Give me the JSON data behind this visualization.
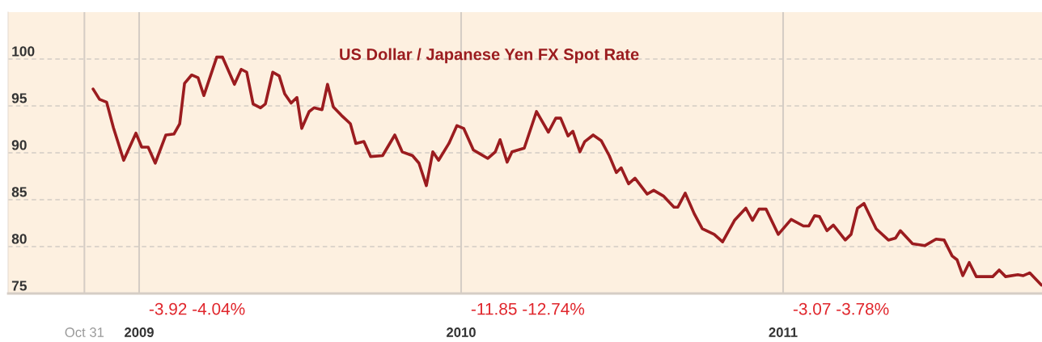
{
  "chart_data": {
    "type": "line",
    "title": "US Dollar / Japanese Yen FX Spot Rate",
    "x": [
      2008.857,
      2008.877,
      2008.899,
      2008.92,
      2008.952,
      2008.99,
      2009.008,
      2009.028,
      2009.05,
      2009.083,
      2009.108,
      2009.126,
      2009.141,
      2009.163,
      2009.183,
      2009.201,
      2009.241,
      2009.259,
      2009.296,
      2009.317,
      2009.334,
      2009.354,
      2009.377,
      2009.392,
      2009.415,
      2009.435,
      2009.452,
      2009.472,
      2009.49,
      2009.505,
      2009.528,
      2009.543,
      2009.568,
      2009.585,
      2009.603,
      2009.628,
      2009.656,
      2009.673,
      2009.698,
      2009.719,
      2009.756,
      2009.794,
      2009.817,
      2009.849,
      2009.869,
      2009.892,
      2009.912,
      2009.93,
      2009.962,
      2009.987,
      2010.008,
      2010.038,
      2010.058,
      2010.083,
      2010.106,
      2010.121,
      2010.143,
      2010.158,
      2010.196,
      2010.234,
      2010.271,
      2010.294,
      2010.309,
      2010.332,
      2010.347,
      2010.369,
      2010.384,
      2010.41,
      2010.435,
      2010.46,
      2010.482,
      2010.497,
      2010.52,
      2010.54,
      2010.578,
      2010.598,
      2010.628,
      2010.661,
      2010.673,
      2010.696,
      2010.724,
      2010.749,
      2010.786,
      2010.812,
      2010.849,
      2010.884,
      2010.905,
      2010.925,
      2010.947,
      2010.985,
      2011.025,
      2011.063,
      2011.08,
      2011.098,
      2011.113,
      2011.136,
      2011.156,
      2011.193,
      2011.211,
      2011.231,
      2011.251,
      2011.289,
      2011.327,
      2011.349,
      2011.364,
      2011.402,
      2011.44,
      2011.475,
      2011.5,
      2011.525,
      2011.54,
      2011.558,
      2011.578,
      2011.6,
      2011.651,
      2011.671,
      2011.691,
      2011.729,
      2011.746,
      2011.766,
      2011.802
    ],
    "series": [
      {
        "color": "#9b1c1f",
        "values": [
          96.8,
          95.7,
          95.4,
          92.7,
          89.2,
          92.1,
          90.6,
          90.6,
          88.9,
          91.9,
          92.0,
          93.1,
          97.4,
          98.3,
          98.0,
          96.1,
          100.2,
          100.2,
          97.3,
          98.9,
          98.6,
          95.2,
          94.8,
          95.2,
          98.6,
          98.2,
          96.3,
          95.3,
          95.9,
          92.6,
          94.4,
          94.8,
          94.6,
          97.3,
          94.9,
          94.0,
          93.1,
          91.0,
          91.2,
          89.6,
          89.7,
          91.9,
          90.1,
          89.7,
          88.9,
          86.5,
          90.1,
          89.2,
          91.0,
          92.9,
          92.6,
          90.3,
          89.9,
          89.4,
          90.1,
          91.4,
          89.0,
          90.1,
          90.5,
          94.4,
          92.2,
          93.7,
          93.7,
          91.8,
          92.3,
          90.1,
          91.2,
          91.9,
          91.3,
          89.7,
          87.9,
          88.4,
          86.7,
          87.3,
          85.6,
          86.0,
          85.4,
          84.2,
          84.2,
          85.7,
          83.5,
          81.9,
          81.3,
          80.5,
          82.8,
          84.1,
          82.8,
          84.0,
          84.0,
          81.3,
          82.9,
          82.2,
          82.2,
          83.3,
          83.2,
          81.7,
          82.3,
          80.7,
          81.3,
          84.1,
          84.6,
          81.9,
          80.7,
          80.9,
          81.7,
          80.3,
          80.1,
          80.8,
          80.7,
          79.0,
          78.6,
          76.9,
          78.3,
          76.8,
          76.8,
          77.5,
          76.8,
          77.0,
          76.9,
          77.2,
          75.9
        ]
      }
    ],
    "xlim": [
      2008.593,
      2011.804
    ],
    "xticks": [
      {
        "value": 2008.83,
        "label": "Oct 31"
      },
      2009,
      2010,
      2011
    ],
    "ylim": [
      75,
      105
    ],
    "yticks": [
      75,
      80,
      85,
      90,
      95,
      100
    ],
    "grid": true,
    "line_style": "solid",
    "annotations": [
      "-3.92 -4.04%",
      "-11.85 -12.74%",
      "-3.07 -3.78%"
    ]
  }
}
